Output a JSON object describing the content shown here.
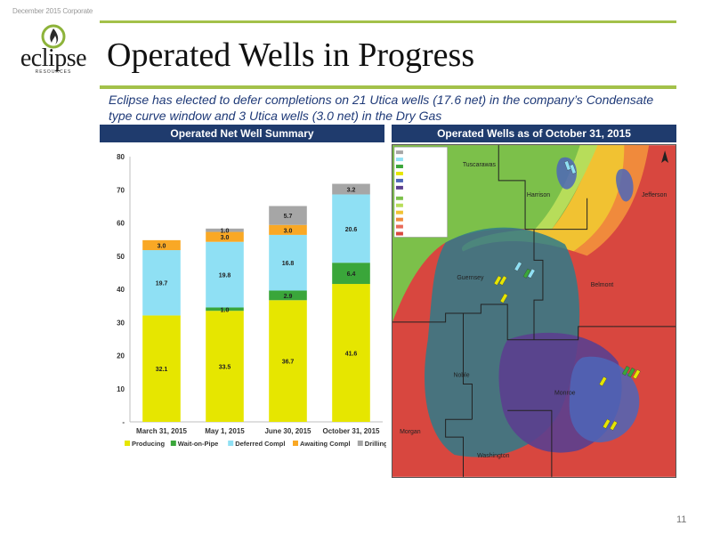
{
  "header": {
    "corporate_label": "December 2015 Corporate",
    "title": "Operated Wells in Progress",
    "subtitle": "Eclipse has elected to defer completions on 21 Utica wells (17.6 net) in the company’s Condensate type curve window and 3 Utica wells (3.0 net) in the Dry Gas"
  },
  "logo": {
    "word": "eclipse",
    "sub": "RESOURCES"
  },
  "left_panel": {
    "heading": "Operated Net Well Summary"
  },
  "right_panel": {
    "heading": "Operated Wells as of October 31, 2015"
  },
  "chart_data": {
    "type": "bar",
    "stacked": true,
    "categories": [
      "March 31, 2015",
      "May 1, 2015",
      "June 30, 2015",
      "October 31, 2015"
    ],
    "series": [
      {
        "name": "Producing",
        "color": "#e6e600",
        "values": [
          32.1,
          33.5,
          36.7,
          41.6
        ]
      },
      {
        "name": "Wait-on-Pipe",
        "color": "#3aa63a",
        "values": [
          0,
          1.0,
          2.9,
          6.4
        ]
      },
      {
        "name": "Deferred Compl",
        "color": "#8fe0f4",
        "values": [
          19.7,
          19.8,
          16.8,
          20.6
        ]
      },
      {
        "name": "Awaiting Compl",
        "color": "#f9a825",
        "values": [
          3.0,
          3.0,
          3.0,
          0
        ]
      },
      {
        "name": "Drilling",
        "color": "#a6a6a6",
        "values": [
          0,
          1.0,
          5.7,
          3.2
        ]
      }
    ],
    "ylim": [
      0,
      80
    ],
    "yticks": [
      "-",
      "10",
      "20",
      "30",
      "40",
      "50",
      "60",
      "70",
      "80"
    ],
    "legend_position": "bottom",
    "grid": false
  },
  "map": {
    "counties": [
      "Tuscarawas",
      "Harrison",
      "Jefferson",
      "Guernsey",
      "Belmont",
      "Noble",
      "Monroe",
      "Morgan",
      "Washington"
    ]
  },
  "page_number": "11"
}
